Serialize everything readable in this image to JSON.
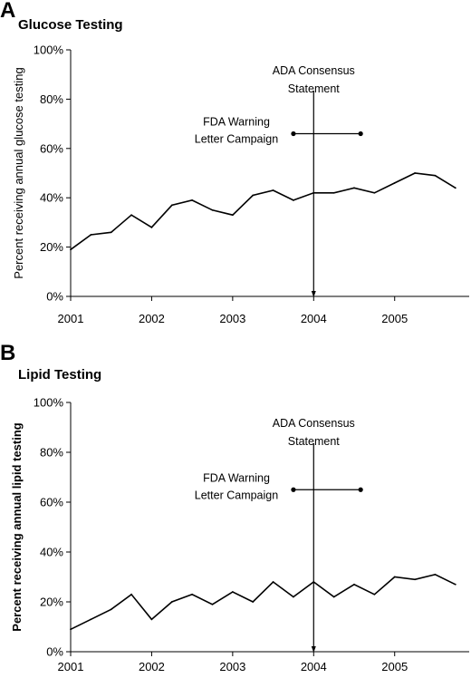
{
  "figure": {
    "panels": [
      {
        "letter": "A",
        "title": "Glucose Testing"
      },
      {
        "letter": "B",
        "title": "Lipid Testing"
      }
    ]
  },
  "colors": {
    "line": "#000000",
    "background": "#ffffff"
  },
  "chart_data": [
    {
      "type": "line",
      "title": "Glucose Testing",
      "xlabel": "",
      "ylabel": "Percent receiving annual glucose testing",
      "ylabel_bold": false,
      "xlim": [
        2001.0,
        2005.92
      ],
      "ylim": [
        0,
        100
      ],
      "y_ticks": [
        0,
        20,
        40,
        60,
        80,
        100
      ],
      "y_tick_labels": [
        "0%",
        "20%",
        "40%",
        "60%",
        "80%",
        "100%"
      ],
      "x_ticks": [
        2001,
        2002,
        2003,
        2004,
        2005
      ],
      "x_tick_labels": [
        "2001",
        "2002",
        "2003",
        "2004",
        "2005"
      ],
      "grid": false,
      "x": [
        2001.0,
        2001.25,
        2001.5,
        2001.75,
        2002.0,
        2002.25,
        2002.5,
        2002.75,
        2003.0,
        2003.25,
        2003.5,
        2003.75,
        2004.0,
        2004.25,
        2004.5,
        2004.75,
        2005.0,
        2005.25,
        2005.5,
        2005.75
      ],
      "series": [
        {
          "values": [
            19,
            25,
            26,
            33,
            28,
            37,
            39,
            35,
            33,
            41,
            43,
            39,
            42,
            42,
            44,
            42,
            46,
            50,
            49,
            44
          ]
        }
      ],
      "annotations": [
        {
          "kind": "vertical-arrow",
          "x": 2004.0,
          "label": [
            "ADA Consensus",
            "Statement"
          ]
        },
        {
          "kind": "span",
          "x_start": 2003.75,
          "x_end": 2004.58,
          "y": 66,
          "label": [
            "FDA Warning",
            "Letter Campaign"
          ]
        }
      ]
    },
    {
      "type": "line",
      "title": "Lipid Testing",
      "xlabel": "",
      "ylabel": "Percent receiving annual lipid testing",
      "ylabel_bold": true,
      "xlim": [
        2001.0,
        2005.92
      ],
      "ylim": [
        0,
        100
      ],
      "y_ticks": [
        0,
        20,
        40,
        60,
        80,
        100
      ],
      "y_tick_labels": [
        "0%",
        "20%",
        "40%",
        "60%",
        "80%",
        "100%"
      ],
      "x_ticks": [
        2001,
        2002,
        2003,
        2004,
        2005
      ],
      "x_tick_labels": [
        "2001",
        "2002",
        "2003",
        "2004",
        "2005"
      ],
      "grid": false,
      "x": [
        2001.0,
        2001.25,
        2001.5,
        2001.75,
        2002.0,
        2002.25,
        2002.5,
        2002.75,
        2003.0,
        2003.25,
        2003.5,
        2003.75,
        2004.0,
        2004.25,
        2004.5,
        2004.75,
        2005.0,
        2005.25,
        2005.5,
        2005.75
      ],
      "series": [
        {
          "values": [
            9,
            13,
            17,
            23,
            13,
            20,
            23,
            19,
            24,
            20,
            28,
            22,
            28,
            22,
            27,
            23,
            30,
            29,
            31,
            27
          ]
        }
      ],
      "annotations": [
        {
          "kind": "vertical-arrow",
          "x": 2004.0,
          "label": [
            "ADA Consensus",
            "Statement"
          ]
        },
        {
          "kind": "span",
          "x_start": 2003.75,
          "x_end": 2004.58,
          "y": 65,
          "label": [
            "FDA Warning",
            "Letter Campaign"
          ]
        }
      ]
    }
  ]
}
